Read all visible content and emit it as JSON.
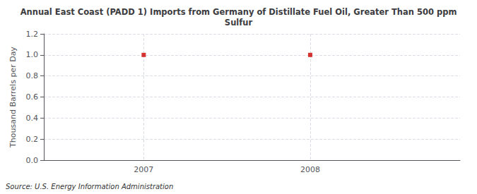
{
  "chart_data": {
    "type": "scatter",
    "title": "Annual East Coast (PADD 1) Imports from Germany of Distillate Fuel Oil, Greater Than 500 ppm\nSulfur",
    "ylabel": "Thousand Barrels per Day",
    "source": "Source: U.S. Energy Information Administration",
    "x": [
      2007,
      2008
    ],
    "values": [
      1.0,
      1.0
    ],
    "color": "#cc0000",
    "marker": "square",
    "xlim": [
      2006.4,
      2008.9
    ],
    "xticks": [
      2007,
      2008
    ],
    "ylim": [
      0.0,
      1.2
    ],
    "yticks": [
      {
        "value": 0.0,
        "label": "0.0"
      },
      0.2,
      0.4,
      0.6,
      0.8,
      {
        "value": 1.0,
        "label": "1.0"
      },
      1.2
    ],
    "grid": true
  }
}
